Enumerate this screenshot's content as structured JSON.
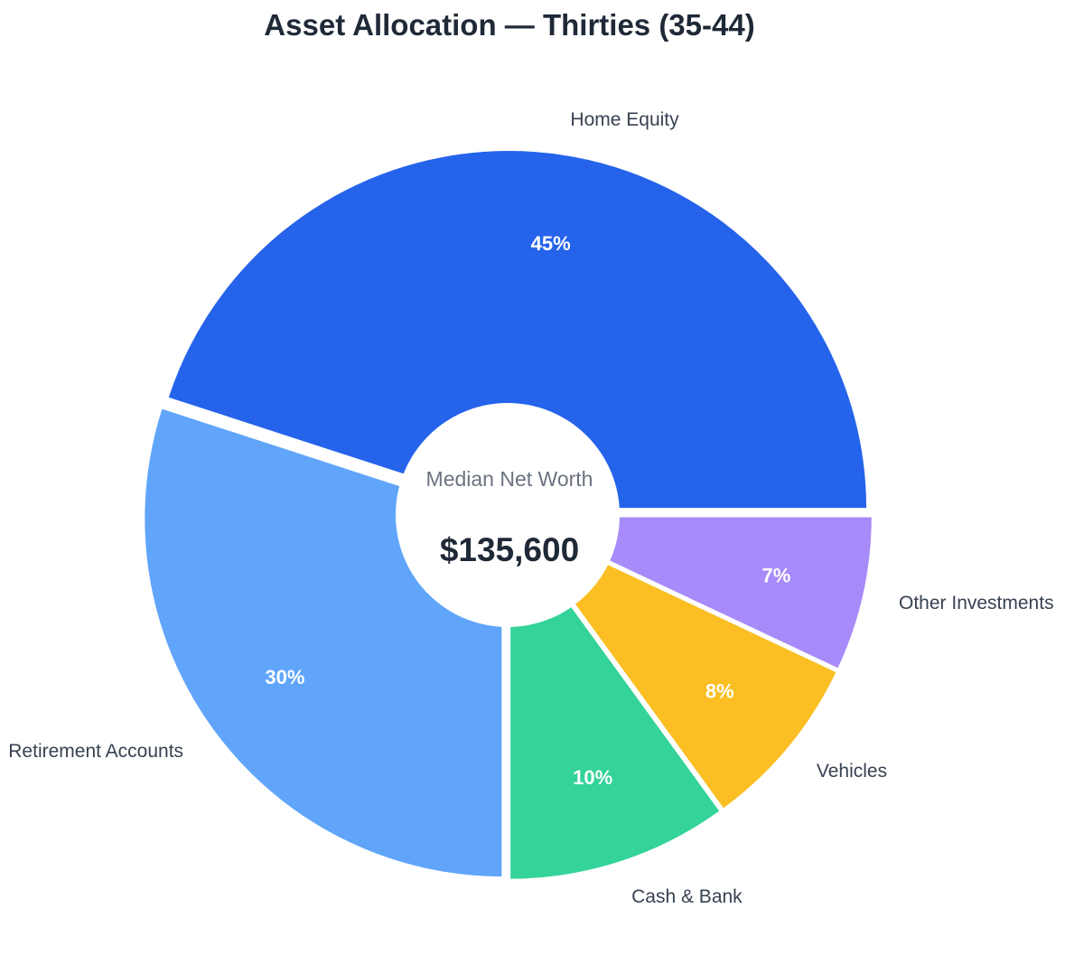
{
  "chart_data": {
    "type": "pie",
    "title": "Asset Allocation — Thirties (35-44)",
    "center": {
      "label": "Median Net Worth",
      "value": "$135,600"
    },
    "start_angle_deg": 0,
    "direction": "counterclockwise",
    "legend": "none",
    "slices": [
      {
        "label": "Home Equity",
        "value": 45,
        "display": "45%",
        "color": "#2563eb"
      },
      {
        "label": "Retirement Accounts",
        "value": 30,
        "display": "30%",
        "color": "#60a5fa"
      },
      {
        "label": "Cash & Bank",
        "value": 10,
        "display": "10%",
        "color": "#34d399"
      },
      {
        "label": "Vehicles",
        "value": 8,
        "display": "8%",
        "color": "#fbbf24"
      },
      {
        "label": "Other Investments",
        "value": 7,
        "display": "7%",
        "color": "#a78bfa"
      }
    ]
  }
}
